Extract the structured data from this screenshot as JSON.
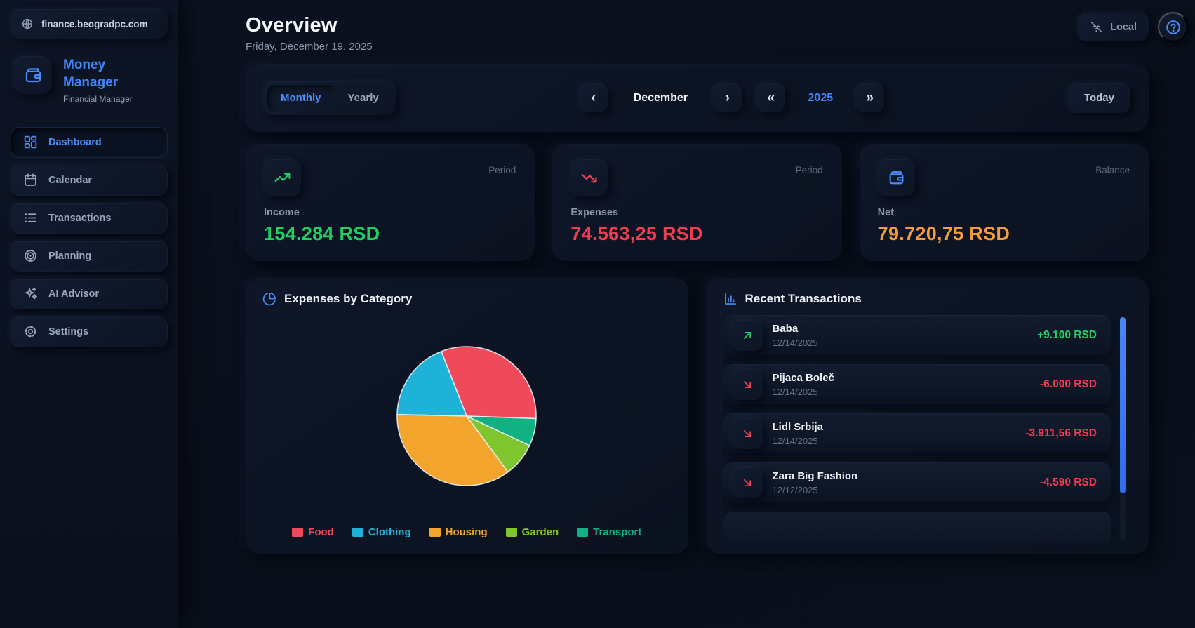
{
  "app": {
    "domain_label": "finance.beogradpc.com",
    "name": "Money Manager",
    "tagline": "Financial Manager"
  },
  "sidebar": {
    "items": [
      {
        "label": "Dashboard",
        "icon": "dashboard-grid-icon",
        "active": true
      },
      {
        "label": "Calendar",
        "icon": "calendar-icon",
        "active": false
      },
      {
        "label": "Transactions",
        "icon": "list-icon",
        "active": false
      },
      {
        "label": "Planning",
        "icon": "target-icon",
        "active": false
      },
      {
        "label": "AI Advisor",
        "icon": "sparkles-icon",
        "active": false
      },
      {
        "label": "Settings",
        "icon": "gear-icon",
        "active": false
      }
    ]
  },
  "header": {
    "title": "Overview",
    "date": "Friday, December 19, 2025",
    "mode_badge": "Local"
  },
  "period_bar": {
    "toggle": [
      {
        "label": "Monthly",
        "active": true
      },
      {
        "label": "Yearly",
        "active": false
      }
    ],
    "prev_month_glyph": "‹",
    "month": "December",
    "next_month_glyph": "›",
    "prev_year_glyph": "«",
    "year": "2025",
    "next_year_glyph": "»",
    "today_label": "Today"
  },
  "stats": [
    {
      "label": "Income",
      "value": "154.284 RSD",
      "scope": "Period",
      "icon": "trending-up-icon",
      "icon_color": "#22d368",
      "value_color": "#21d064"
    },
    {
      "label": "Expenses",
      "value": "74.563,25 RSD",
      "scope": "Period",
      "icon": "trending-down-icon",
      "icon_color": "#f4465a",
      "value_color": "#f23d50"
    },
    {
      "label": "Net",
      "value": "79.720,75 RSD",
      "scope": "Balance",
      "icon": "wallet-icon",
      "icon_color": "#4a8df8",
      "value_color": "#f59b3c"
    }
  ],
  "chart_data": {
    "type": "pie",
    "title": "Expenses by Category",
    "labels": [
      "Food",
      "Clothing",
      "Housing",
      "Garden",
      "Transport"
    ],
    "values_pct": [
      31.5,
      18.7,
      35.5,
      7.9,
      6.4
    ],
    "colors": [
      "#f0495a",
      "#1fb2d9",
      "#f2a42c",
      "#7fc52d",
      "#12b181"
    ],
    "legend_position": "bottom",
    "rotation_deg": 92,
    "counterclockwise": true
  },
  "transactions": {
    "title": "Recent Transactions",
    "items": [
      {
        "name": "Baba",
        "date": "12/14/2025",
        "amount": "+9.100 RSD",
        "direction": "income"
      },
      {
        "name": "Pijaca Boleč",
        "date": "12/14/2025",
        "amount": "-6.000 RSD",
        "direction": "expense"
      },
      {
        "name": "Lidl Srbija",
        "date": "12/14/2025",
        "amount": "-3.911,56 RSD",
        "direction": "expense"
      },
      {
        "name": "Zara Big Fashion",
        "date": "12/12/2025",
        "amount": "-4.590 RSD",
        "direction": "expense"
      }
    ]
  },
  "colors": {
    "accent_blue": "#4a8df8",
    "income_green": "#21d064",
    "expense_red": "#f23d50",
    "net_orange": "#f59b3c",
    "scrollbar_blue": "#3f7bf4"
  }
}
